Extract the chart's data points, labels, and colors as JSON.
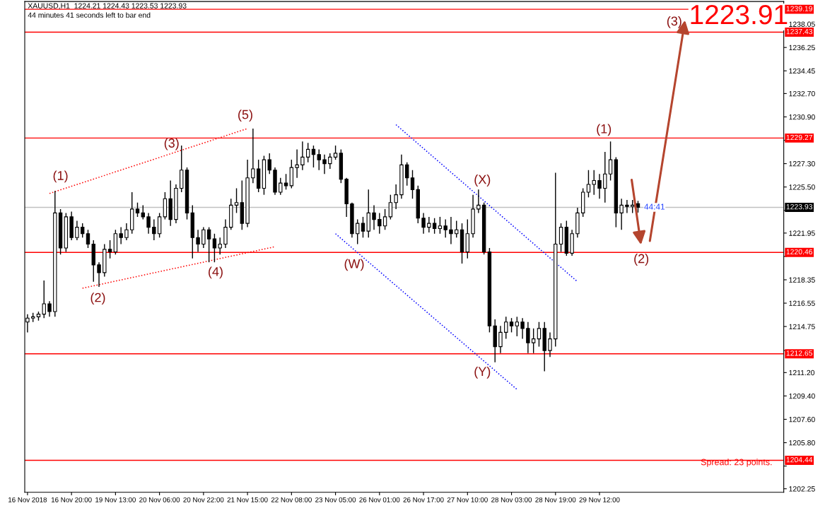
{
  "chart_data": {
    "type": "candlestick",
    "title": "XAUUSD,H1  1224.21 1224.43 1223.53 1223.93",
    "subtitle": "44 minutes 41 seconds left to bar end",
    "categories": [
      "16 Nov 2018",
      null,
      null,
      null,
      null,
      null,
      null,
      null,
      "16 Nov 20:00",
      null,
      null,
      null,
      null,
      null,
      null,
      null,
      "19 Nov 13:00",
      null,
      null,
      null,
      null,
      null,
      null,
      null,
      "20 Nov 06:00",
      null,
      null,
      null,
      null,
      null,
      null,
      null,
      "20 Nov 22:00",
      null,
      null,
      null,
      null,
      null,
      null,
      null,
      "21 Nov 15:00",
      null,
      null,
      null,
      null,
      null,
      null,
      null,
      "22 Nov 08:00",
      null,
      null,
      null,
      null,
      null,
      null,
      null,
      "23 Nov 05:00",
      null,
      null,
      null,
      null,
      null,
      null,
      null,
      "26 Nov 01:00",
      null,
      null,
      null,
      null,
      null,
      null,
      null,
      "26 Nov 17:00",
      null,
      null,
      null,
      null,
      null,
      null,
      null,
      "27 Nov 10:00",
      null,
      null,
      null,
      null,
      null,
      null,
      null,
      "28 Nov 03:00",
      null,
      null,
      null,
      null,
      null,
      null,
      null,
      "28 Nov 19:00",
      null,
      null,
      null,
      null,
      null,
      null,
      null,
      "29 Nov 12:00",
      null,
      null,
      null,
      null,
      null,
      null,
      null,
      null,
      null,
      null,
      null,
      null,
      null,
      null,
      null,
      null,
      null,
      null,
      null,
      null,
      null,
      null,
      null,
      null,
      null,
      null,
      null,
      null,
      null,
      null,
      null,
      null,
      null
    ],
    "ohlc": [
      [
        1215.1,
        1215.7,
        1214.3,
        1215.4
      ],
      [
        1215.4,
        1215.8,
        1215.1,
        1215.5
      ],
      [
        1215.5,
        1215.9,
        1215.2,
        1215.7
      ],
      [
        1215.7,
        1218.3,
        1215.4,
        1216.5
      ],
      [
        1216.5,
        1216.7,
        1215.5,
        1215.9
      ],
      [
        1215.9,
        1225.2,
        1215.5,
        1223.5
      ],
      [
        1223.5,
        1223.8,
        1220.3,
        1220.8
      ],
      [
        1220.8,
        1223.5,
        1220.5,
        1223.2
      ],
      [
        1223.2,
        1223.6,
        1221.4,
        1221.6
      ],
      [
        1221.6,
        1222.9,
        1221.4,
        1222.4
      ],
      [
        1222.4,
        1222.7,
        1221.6,
        1221.9
      ],
      [
        1221.9,
        1222.2,
        1220.8,
        1221.1
      ],
      [
        1221.1,
        1221.4,
        1218.2,
        1219.5
      ],
      [
        1219.5,
        1219.7,
        1217.8,
        1218.9
      ],
      [
        1218.9,
        1221.1,
        1218.6,
        1220.7
      ],
      [
        1220.7,
        1221.4,
        1220.0,
        1220.5
      ],
      [
        1220.5,
        1222.2,
        1220.3,
        1221.9
      ],
      [
        1221.9,
        1222.4,
        1221.1,
        1221.6
      ],
      [
        1221.6,
        1222.7,
        1221.4,
        1222.2
      ],
      [
        1222.2,
        1225.1,
        1221.9,
        1223.8
      ],
      [
        1223.8,
        1224.3,
        1223.2,
        1223.5
      ],
      [
        1223.5,
        1224.1,
        1223.0,
        1223.2
      ],
      [
        1223.2,
        1223.5,
        1221.9,
        1222.4
      ],
      [
        1222.4,
        1223.0,
        1221.4,
        1221.9
      ],
      [
        1221.9,
        1223.5,
        1221.6,
        1223.2
      ],
      [
        1223.2,
        1225.1,
        1223.0,
        1224.6
      ],
      [
        1224.6,
        1226.0,
        1222.5,
        1223.0
      ],
      [
        1223.0,
        1225.7,
        1222.7,
        1225.4
      ],
      [
        1225.4,
        1228.7,
        1225.1,
        1226.8
      ],
      [
        1226.8,
        1227.0,
        1223.0,
        1223.5
      ],
      [
        1223.5,
        1224.1,
        1220.0,
        1221.6
      ],
      [
        1221.6,
        1222.2,
        1220.5,
        1221.1
      ],
      [
        1221.1,
        1222.4,
        1220.8,
        1222.2
      ],
      [
        1222.2,
        1222.4,
        1219.7,
        1221.5
      ],
      [
        1221.5,
        1221.9,
        1219.7,
        1220.8
      ],
      [
        1220.8,
        1221.6,
        1220.3,
        1221.1
      ],
      [
        1221.1,
        1223.0,
        1220.8,
        1222.4
      ],
      [
        1222.4,
        1224.6,
        1222.2,
        1224.1
      ],
      [
        1224.1,
        1225.4,
        1223.5,
        1224.3
      ],
      [
        1224.3,
        1226.0,
        1222.2,
        1222.7
      ],
      [
        1222.7,
        1227.6,
        1222.4,
        1226.2
      ],
      [
        1226.2,
        1230.0,
        1225.8,
        1226.9
      ],
      [
        1226.9,
        1227.6,
        1225.1,
        1225.4
      ],
      [
        1225.4,
        1227.9,
        1224.9,
        1227.6
      ],
      [
        1227.6,
        1228.1,
        1226.5,
        1226.8
      ],
      [
        1226.8,
        1227.0,
        1224.9,
        1225.1
      ],
      [
        1225.1,
        1226.2,
        1224.9,
        1225.8
      ],
      [
        1225.8,
        1226.5,
        1225.3,
        1225.6
      ],
      [
        1225.6,
        1227.6,
        1225.4,
        1227.0
      ],
      [
        1227.0,
        1228.4,
        1226.2,
        1227.2
      ],
      [
        1227.2,
        1229.0,
        1226.8,
        1227.8
      ],
      [
        1227.8,
        1228.9,
        1227.4,
        1228.4
      ],
      [
        1228.4,
        1228.7,
        1227.0,
        1228.0
      ],
      [
        1228.0,
        1228.4,
        1226.8,
        1227.6
      ],
      [
        1227.6,
        1228.0,
        1226.5,
        1227.3
      ],
      [
        1227.3,
        1228.1,
        1226.9,
        1227.8
      ],
      [
        1227.8,
        1228.7,
        1227.6,
        1228.1
      ],
      [
        1228.1,
        1228.4,
        1225.8,
        1226.1
      ],
      [
        1226.1,
        1226.2,
        1223.2,
        1224.2
      ],
      [
        1224.2,
        1224.3,
        1221.6,
        1221.9
      ],
      [
        1221.9,
        1223.0,
        1221.1,
        1222.7
      ],
      [
        1222.7,
        1223.2,
        1221.6,
        1222.1
      ],
      [
        1222.1,
        1225.3,
        1221.6,
        1223.5
      ],
      [
        1223.5,
        1224.1,
        1222.2,
        1223.0
      ],
      [
        1223.0,
        1223.5,
        1221.9,
        1222.5
      ],
      [
        1222.5,
        1223.8,
        1222.2,
        1223.2
      ],
      [
        1223.2,
        1224.9,
        1223.0,
        1224.3
      ],
      [
        1224.3,
        1225.7,
        1223.8,
        1224.9
      ],
      [
        1224.9,
        1228.0,
        1224.6,
        1227.2
      ],
      [
        1227.2,
        1227.4,
        1225.6,
        1226.2
      ],
      [
        1226.2,
        1226.8,
        1224.6,
        1225.3
      ],
      [
        1225.3,
        1225.6,
        1222.7,
        1223.1
      ],
      [
        1223.1,
        1223.5,
        1221.9,
        1222.4
      ],
      [
        1222.4,
        1223.2,
        1222.0,
        1222.7
      ],
      [
        1222.7,
        1223.1,
        1221.9,
        1222.3
      ],
      [
        1222.3,
        1223.2,
        1221.9,
        1222.5
      ],
      [
        1222.5,
        1223.0,
        1221.6,
        1222.2
      ],
      [
        1222.2,
        1223.2,
        1221.1,
        1221.9
      ],
      [
        1221.9,
        1222.9,
        1221.6,
        1222.2
      ],
      [
        1222.2,
        1222.7,
        1219.6,
        1220.5
      ],
      [
        1220.5,
        1223.0,
        1220.0,
        1221.9
      ],
      [
        1221.9,
        1224.9,
        1221.6,
        1223.8
      ],
      [
        1223.8,
        1225.3,
        1223.5,
        1224.1
      ],
      [
        1224.1,
        1224.3,
        1220.3,
        1220.5
      ],
      [
        1220.5,
        1220.8,
        1214.3,
        1214.8
      ],
      [
        1214.8,
        1215.3,
        1212.0,
        1213.2
      ],
      [
        1213.2,
        1214.8,
        1212.7,
        1214.3
      ],
      [
        1214.3,
        1215.5,
        1213.8,
        1215.1
      ],
      [
        1215.1,
        1215.4,
        1214.3,
        1214.8
      ],
      [
        1214.8,
        1215.5,
        1214.0,
        1215.1
      ],
      [
        1215.1,
        1215.4,
        1213.8,
        1214.6
      ],
      [
        1214.6,
        1215.1,
        1212.7,
        1213.5
      ],
      [
        1213.5,
        1214.6,
        1212.7,
        1213.8
      ],
      [
        1213.8,
        1215.1,
        1213.2,
        1214.6
      ],
      [
        1214.6,
        1215.1,
        1211.3,
        1212.9
      ],
      [
        1212.9,
        1214.3,
        1212.4,
        1213.8
      ],
      [
        1213.8,
        1226.6,
        1213.2,
        1221.1
      ],
      [
        1221.1,
        1222.7,
        1220.5,
        1222.4
      ],
      [
        1222.4,
        1222.9,
        1220.2,
        1220.4
      ],
      [
        1220.4,
        1222.2,
        1220.2,
        1221.9
      ],
      [
        1221.9,
        1223.9,
        1221.6,
        1223.5
      ],
      [
        1223.5,
        1225.4,
        1223.2,
        1225.1
      ],
      [
        1225.1,
        1226.8,
        1224.7,
        1225.7
      ],
      [
        1225.7,
        1226.8,
        1224.9,
        1226.0
      ],
      [
        1226.0,
        1226.5,
        1224.6,
        1225.4
      ],
      [
        1225.4,
        1228.2,
        1224.3,
        1226.5
      ],
      [
        1226.5,
        1229.0,
        1226.0,
        1227.6
      ],
      [
        1227.6,
        1227.8,
        1222.4,
        1223.5
      ],
      [
        1223.5,
        1224.6,
        1222.2,
        1224.1
      ],
      [
        1224.1,
        1224.5,
        1223.5,
        1224.0
      ],
      [
        1224.0,
        1224.5,
        1223.5,
        1224.1
      ],
      [
        1224.21,
        1224.43,
        1223.53,
        1223.93
      ],
      null,
      null,
      null,
      null,
      null,
      null,
      null,
      null,
      null,
      null,
      null,
      null,
      null,
      null,
      null,
      null,
      null,
      null,
      null,
      null,
      null,
      null,
      null,
      null,
      null,
      null
    ],
    "series": [
      {
        "type": "line",
        "color": "#ff0000",
        "line_style": "dotted",
        "values": [
          null,
          null,
          null,
          null,
          1225.0,
          null,
          null,
          null,
          null,
          null,
          null,
          null,
          null,
          null,
          null,
          null,
          null,
          null,
          null,
          null,
          null,
          null,
          null,
          null,
          null,
          null,
          null,
          null,
          null,
          null,
          null,
          null,
          null,
          null,
          null,
          null,
          null,
          null,
          null,
          null,
          1230.0,
          null,
          null,
          null,
          null,
          null,
          null,
          null,
          null,
          null,
          null,
          null,
          null,
          null,
          null,
          null,
          null,
          null,
          null,
          null,
          null,
          null,
          null,
          null,
          null,
          null,
          null,
          null,
          null,
          null,
          null,
          null,
          null,
          null,
          null,
          null,
          null,
          null,
          null,
          null,
          null,
          null,
          null,
          null,
          null,
          null,
          null,
          null,
          null,
          null,
          null,
          null,
          null,
          null,
          null,
          null,
          null,
          null,
          null,
          null,
          null,
          null,
          null,
          null,
          null,
          null,
          null,
          null,
          null,
          null,
          null,
          null,
          null,
          null,
          null,
          null,
          null,
          null,
          null,
          null,
          null,
          null,
          null,
          null,
          null,
          null,
          null,
          null,
          null,
          null,
          null,
          null,
          null,
          null,
          null,
          null,
          null,
          null
        ]
      },
      {
        "type": "line",
        "color": "#ff0000",
        "line_style": "dotted",
        "values": [
          null,
          null,
          null,
          null,
          null,
          null,
          null,
          null,
          null,
          null,
          1217.7,
          null,
          null,
          null,
          null,
          null,
          null,
          null,
          null,
          null,
          null,
          null,
          null,
          null,
          null,
          null,
          null,
          null,
          null,
          null,
          null,
          null,
          null,
          null,
          null,
          null,
          null,
          null,
          null,
          null,
          null,
          null,
          null,
          null,
          null,
          1220.9,
          null,
          null,
          null,
          null,
          null,
          null,
          null,
          null,
          null,
          null,
          null,
          null,
          null,
          null,
          null,
          null,
          null,
          null,
          null,
          null,
          null,
          null,
          null,
          null,
          null,
          null,
          null,
          null,
          null,
          null,
          null,
          null,
          null,
          null,
          null,
          null,
          null,
          null,
          null,
          null,
          null,
          null,
          null,
          null,
          null,
          null,
          null,
          null,
          null,
          null,
          null,
          null,
          null,
          null,
          null,
          null,
          null,
          null,
          null,
          null,
          null,
          null,
          null,
          null,
          null,
          null,
          null,
          null,
          null,
          null,
          null,
          null,
          null,
          null,
          null,
          null,
          null,
          null,
          null,
          null,
          null,
          null,
          null,
          null,
          null,
          null,
          null,
          null,
          null,
          null,
          null,
          null
        ]
      },
      {
        "type": "line",
        "color": "#0000ff",
        "line_style": "dotted",
        "values": [
          null,
          null,
          null,
          null,
          null,
          null,
          null,
          null,
          null,
          null,
          null,
          null,
          null,
          null,
          null,
          null,
          null,
          null,
          null,
          null,
          null,
          null,
          null,
          null,
          null,
          null,
          null,
          null,
          null,
          null,
          null,
          null,
          null,
          null,
          null,
          null,
          null,
          null,
          null,
          null,
          null,
          null,
          null,
          null,
          null,
          null,
          null,
          null,
          null,
          null,
          null,
          null,
          null,
          null,
          null,
          null,
          null,
          null,
          null,
          null,
          null,
          null,
          null,
          null,
          null,
          null,
          null,
          1230.3,
          null,
          null,
          null,
          null,
          null,
          null,
          null,
          null,
          null,
          null,
          null,
          null,
          null,
          null,
          null,
          null,
          null,
          null,
          null,
          null,
          null,
          null,
          null,
          null,
          null,
          null,
          null,
          null,
          null,
          null,
          null,
          null,
          1218.2,
          null,
          null,
          null,
          null,
          null,
          null,
          null,
          null,
          null,
          null,
          null,
          null,
          null,
          null,
          null,
          null,
          null,
          null,
          null,
          null,
          null,
          null,
          null,
          null,
          null,
          null,
          null,
          null,
          null,
          null,
          null,
          null,
          null,
          null,
          null,
          null,
          null
        ]
      },
      {
        "type": "line",
        "color": "#0000ff",
        "line_style": "dotted",
        "values": [
          null,
          null,
          null,
          null,
          null,
          null,
          null,
          null,
          null,
          null,
          null,
          null,
          null,
          null,
          null,
          null,
          null,
          null,
          null,
          null,
          null,
          null,
          null,
          null,
          null,
          null,
          null,
          null,
          null,
          null,
          null,
          null,
          null,
          null,
          null,
          null,
          null,
          null,
          null,
          null,
          null,
          null,
          null,
          null,
          null,
          null,
          null,
          null,
          null,
          null,
          null,
          null,
          null,
          null,
          null,
          null,
          1221.9,
          null,
          null,
          null,
          null,
          null,
          null,
          null,
          null,
          null,
          null,
          null,
          null,
          null,
          null,
          null,
          null,
          null,
          null,
          null,
          null,
          null,
          null,
          null,
          null,
          null,
          null,
          null,
          null,
          null,
          null,
          null,
          null,
          1209.9,
          null,
          null,
          null,
          null,
          null,
          null,
          null,
          null,
          null,
          null,
          null,
          null,
          null,
          null,
          null,
          null,
          null,
          null,
          null,
          null,
          null,
          null,
          null,
          null,
          null,
          null,
          null,
          null,
          null,
          null,
          null,
          null,
          null,
          null,
          null,
          null,
          null,
          null,
          null,
          null,
          null,
          null,
          null,
          null,
          null,
          null,
          null,
          null
        ]
      }
    ],
    "ylim": [
      1201.98,
      1239.79
    ],
    "yticks": [
      1202.25,
      {
        "value": 1204.0,
        "label": null
      },
      {
        "value": 1205.8,
        "label": "1205.80"
      },
      {
        "value": 1207.6,
        "label": "1207.60"
      },
      {
        "value": 1209.4,
        "label": "1209.40"
      },
      {
        "value": 1211.2,
        "label": "1211.20"
      },
      {
        "value": 1212.9,
        "label": null
      },
      1214.75,
      1216.55,
      1218.35,
      {
        "value": 1220.15,
        "label": null
      },
      1221.95,
      {
        "value": 1223.7,
        "label": null
      },
      {
        "value": 1225.5,
        "label": "1225.50"
      },
      {
        "value": 1227.3,
        "label": "1227.30"
      },
      {
        "value": 1229.1,
        "label": null
      },
      {
        "value": 1230.9,
        "label": "1230.90"
      },
      {
        "value": 1232.7,
        "label": "1232.70"
      },
      1234.45,
      1236.25,
      1238.05
    ],
    "ref_lines": [
      {
        "axis": "y",
        "value": 1239.19,
        "label": "1239.19",
        "color": "#ff0000"
      },
      {
        "axis": "y",
        "value": 1237.43,
        "label": "1237.43",
        "color": "#ff0000"
      },
      {
        "axis": "y",
        "value": 1229.27,
        "label": "1229.27",
        "color": "#ff0000"
      },
      {
        "axis": "y",
        "value": 1223.93,
        "label": "1223.93",
        "color": "#c0c0c0"
      },
      {
        "axis": "y",
        "value": 1220.46,
        "label": "1220.46",
        "color": "#ff0000"
      },
      {
        "axis": "y",
        "value": 1212.65,
        "label": "1212.65",
        "color": "#ff0000"
      },
      {
        "axis": "y",
        "value": 1204.44,
        "label": "1204.44",
        "color": "#ff0000"
      }
    ],
    "annotations": [
      "(1)",
      "(2)",
      "(3)",
      "(4)",
      "(5)",
      "(W)",
      "(X)",
      "(Y)",
      "(1)",
      "(2)",
      "(3)",
      "1223.91",
      "44:41",
      "Spread: 23 points."
    ],
    "grid": false,
    "legend": false
  }
}
